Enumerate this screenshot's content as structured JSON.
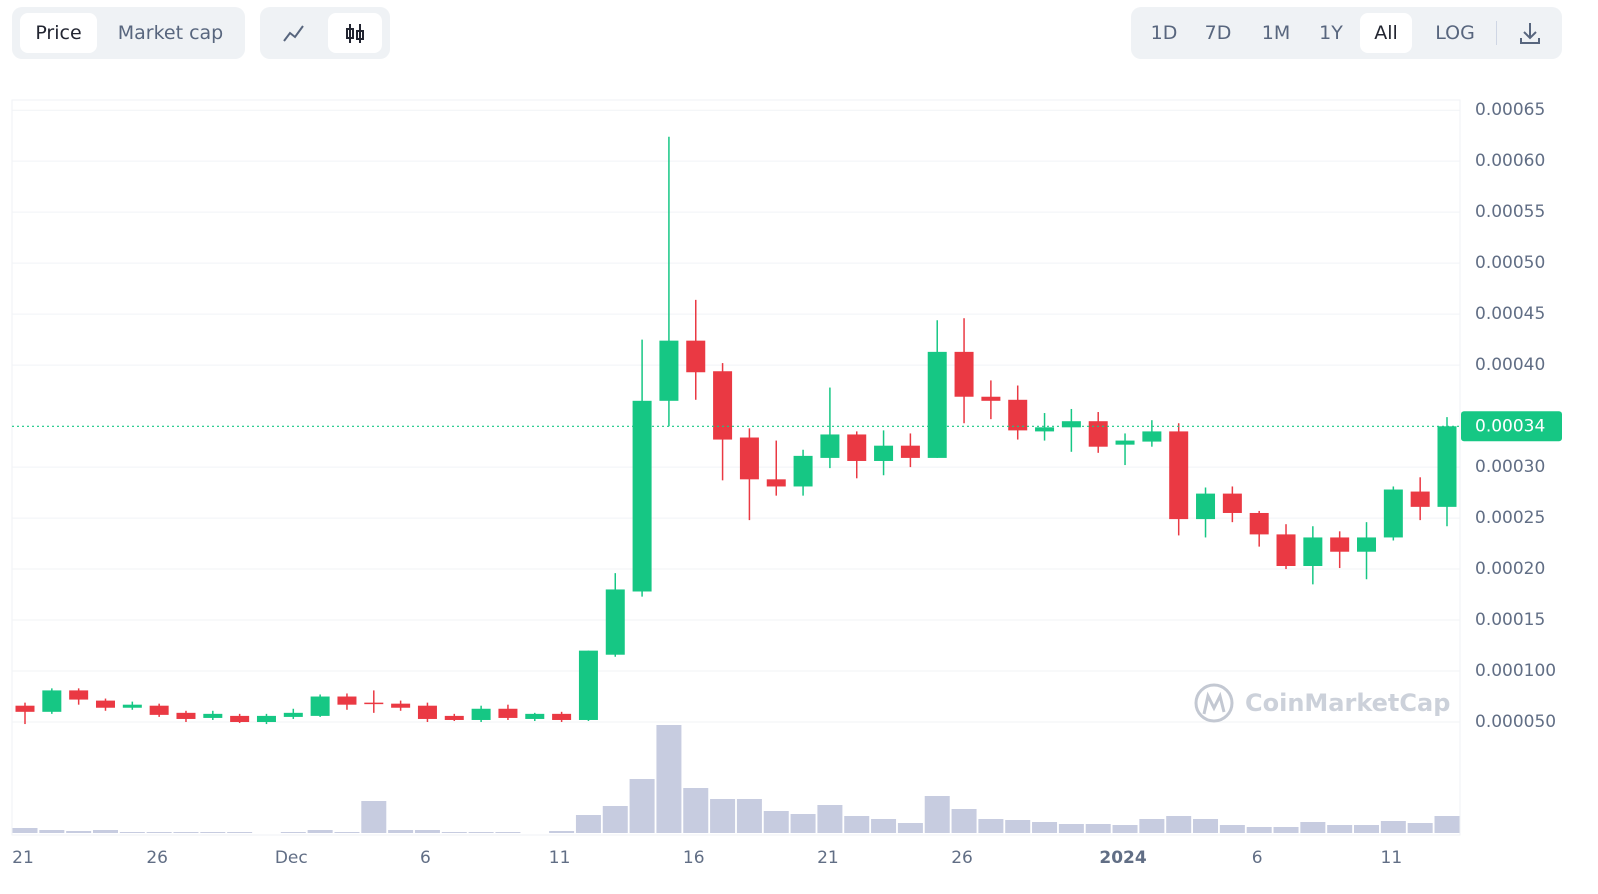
{
  "toolbar": {
    "modes": [
      "Price",
      "Market cap"
    ],
    "mode_active": 0,
    "ranges": [
      "1D",
      "7D",
      "1M",
      "1Y",
      "All",
      "LOG"
    ],
    "range_active": 4
  },
  "chart_data": {
    "type": "candlestick",
    "categories": [
      "21",
      null,
      null,
      null,
      null,
      "26",
      null,
      null,
      null,
      null,
      "Dec",
      null,
      null,
      null,
      null,
      "6",
      null,
      null,
      null,
      null,
      "11",
      null,
      null,
      null,
      null,
      "16",
      null,
      null,
      null,
      null,
      "21",
      null,
      null,
      null,
      null,
      "26",
      null,
      null,
      null,
      null,
      null,
      "2024",
      null,
      null,
      null,
      null,
      "6",
      null,
      null,
      null,
      null,
      "11",
      null,
      null
    ],
    "open": [
      6.6e-05,
      6e-05,
      8.1e-05,
      7.1e-05,
      6.4e-05,
      6.6e-05,
      5.9e-05,
      5.4e-05,
      5.6e-05,
      5e-05,
      5.5e-05,
      5.6e-05,
      7.5e-05,
      6.9e-05,
      6.8e-05,
      6.6e-05,
      5.6e-05,
      5.2e-05,
      6.3e-05,
      5.3e-05,
      5.8e-05,
      5.2e-05,
      0.000116,
      0.000178,
      0.000365,
      0.000424,
      0.000394,
      0.000329,
      0.000288,
      0.000281,
      0.000309,
      0.000332,
      0.000306,
      0.000321,
      0.000309,
      0.000413,
      0.000369,
      0.000366,
      0.000335,
      0.000339,
      0.000345,
      0.000322,
      0.000325,
      0.000335,
      0.000249,
      0.000274,
      0.000255,
      0.000234,
      0.000203,
      0.000231,
      0.000217,
      0.000231,
      0.000276,
      0.000261
    ],
    "high": [
      6.9e-05,
      8.3e-05,
      8.3e-05,
      7.3e-05,
      7e-05,
      6.8e-05,
      6.1e-05,
      6.1e-05,
      5.8e-05,
      5.8e-05,
      6.3e-05,
      7.7e-05,
      7.8e-05,
      8.1e-05,
      7.1e-05,
      6.9e-05,
      5.8e-05,
      6.6e-05,
      6.7e-05,
      5.9e-05,
      6e-05,
      0.00012,
      0.000196,
      0.000425,
      0.000624,
      0.000464,
      0.000402,
      0.000338,
      0.000326,
      0.000317,
      0.000378,
      0.000335,
      0.000336,
      0.000333,
      0.000444,
      0.000446,
      0.000385,
      0.00038,
      0.000353,
      0.000357,
      0.000354,
      0.000333,
      0.000346,
      0.000343,
      0.00028,
      0.000281,
      0.000257,
      0.000244,
      0.000242,
      0.000237,
      0.000246,
      0.000281,
      0.00029,
      0.000349
    ],
    "low": [
      4.8e-05,
      5.8e-05,
      6.7e-05,
      6.1e-05,
      6.2e-05,
      5.5e-05,
      5e-05,
      5.2e-05,
      4.9e-05,
      4.8e-05,
      5.3e-05,
      5.5e-05,
      6.2e-05,
      5.9e-05,
      6.1e-05,
      5e-05,
      5.1e-05,
      5e-05,
      5.2e-05,
      5.1e-05,
      5e-05,
      5.1e-05,
      0.000114,
      0.000173,
      0.00034,
      0.000366,
      0.000287,
      0.000248,
      0.000272,
      0.000272,
      0.000299,
      0.000289,
      0.000292,
      0.0003,
      0.000309,
      0.000343,
      0.000347,
      0.000327,
      0.000326,
      0.000315,
      0.000314,
      0.000302,
      0.00032,
      0.000233,
      0.000231,
      0.000246,
      0.000222,
      0.0002,
      0.000185,
      0.000201,
      0.00019,
      0.000228,
      0.000248,
      0.000242
    ],
    "close": [
      6e-05,
      8.1e-05,
      7.2e-05,
      6.4e-05,
      6.7e-05,
      5.7e-05,
      5.3e-05,
      5.8e-05,
      5e-05,
      5.6e-05,
      5.9e-05,
      7.5e-05,
      6.7e-05,
      6.8e-05,
      6.4e-05,
      5.3e-05,
      5.2e-05,
      6.3e-05,
      5.4e-05,
      5.8e-05,
      5.2e-05,
      0.00012,
      0.00018,
      0.000365,
      0.000424,
      0.000393,
      0.000327,
      0.000288,
      0.000281,
      0.000311,
      0.000332,
      0.000306,
      0.000321,
      0.000309,
      0.000413,
      0.000369,
      0.000365,
      0.000336,
      0.000339,
      0.000345,
      0.00032,
      0.000326,
      0.000335,
      0.000249,
      0.000274,
      0.000255,
      0.000234,
      0.000203,
      0.000231,
      0.000217,
      0.000231,
      0.000278,
      0.000261,
      0.00034
    ],
    "volume": [
      5,
      3,
      2,
      3,
      1,
      1,
      1,
      1,
      1,
      0,
      1,
      3,
      1,
      32,
      3,
      3,
      1,
      1,
      1,
      0,
      2,
      18,
      27,
      54,
      108,
      45,
      34,
      34,
      22,
      19,
      28,
      17,
      14,
      10,
      37,
      24,
      14,
      13,
      11,
      9,
      9,
      8,
      14,
      17,
      14,
      8,
      6,
      6,
      11,
      8,
      8,
      12,
      10,
      17
    ],
    "up_color": "#16c784",
    "down_color": "#ea3943",
    "volume_color": "#c7cce0",
    "ylim": [
      0,
      0.00066
    ],
    "yticks": [
      0.00065,
      {
        "value": 0.0006,
        "label": "0.00060"
      },
      0.00055,
      {
        "value": 0.0005,
        "label": "0.00050"
      },
      0.00045,
      {
        "value": 0.0004,
        "label": "0.00040"
      },
      {
        "value": 0.0003,
        "label": "0.00030"
      },
      0.00025,
      {
        "value": 0.0002,
        "label": "0.00020"
      },
      0.00015,
      {
        "value": 0.0001,
        "label": "0.000100"
      },
      {
        "value": 5e-05,
        "label": "0.000050"
      }
    ],
    "grid": true,
    "current_price": 0.00034,
    "watermark": "CoinMarketCap"
  }
}
